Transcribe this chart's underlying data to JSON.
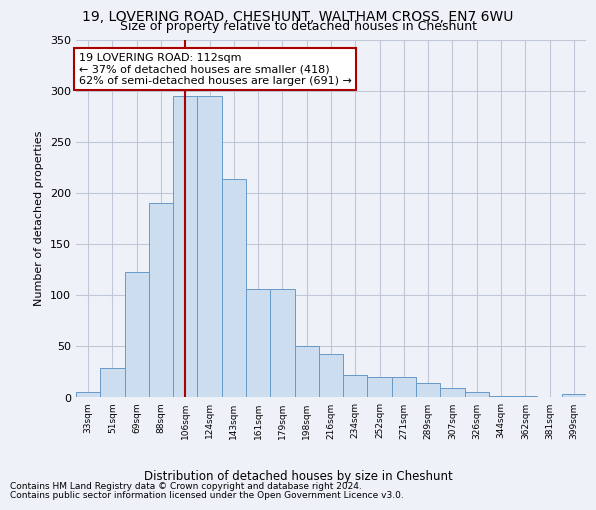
{
  "title1": "19, LOVERING ROAD, CHESHUNT, WALTHAM CROSS, EN7 6WU",
  "title2": "Size of property relative to detached houses in Cheshunt",
  "xlabel": "Distribution of detached houses by size in Cheshunt",
  "ylabel": "Number of detached properties",
  "footnote1": "Contains HM Land Registry data © Crown copyright and database right 2024.",
  "footnote2": "Contains public sector information licensed under the Open Government Licence v3.0.",
  "annotation_line1": "19 LOVERING ROAD: 112sqm",
  "annotation_line2": "← 37% of detached houses are smaller (418)",
  "annotation_line3": "62% of semi-detached houses are larger (691) →",
  "bar_color": "#ccddf0",
  "bar_edge_color": "#6899c8",
  "vline_color": "#aa0000",
  "annotation_box_edge": "#aa0000",
  "background_color": "#eef2f8",
  "grid_color": "#c0c8d8",
  "categories": [
    "33sqm",
    "51sqm",
    "69sqm",
    "88sqm",
    "106sqm",
    "124sqm",
    "143sqm",
    "161sqm",
    "179sqm",
    "198sqm",
    "216sqm",
    "234sqm",
    "252sqm",
    "271sqm",
    "289sqm",
    "307sqm",
    "326sqm",
    "344sqm",
    "362sqm",
    "381sqm",
    "399sqm"
  ],
  "values": [
    5,
    28,
    122,
    190,
    295,
    295,
    213,
    106,
    106,
    50,
    42,
    22,
    20,
    20,
    14,
    9,
    5,
    1,
    1,
    0,
    3
  ],
  "vline_x": 4.0,
  "ylim": [
    0,
    350
  ],
  "yticks": [
    0,
    50,
    100,
    150,
    200,
    250,
    300,
    350
  ],
  "title1_fontsize": 10,
  "title2_fontsize": 9,
  "ylabel_fontsize": 8,
  "annotation_fontsize": 8,
  "footnote_fontsize": 6.5,
  "xlabel_fontsize": 8.5
}
